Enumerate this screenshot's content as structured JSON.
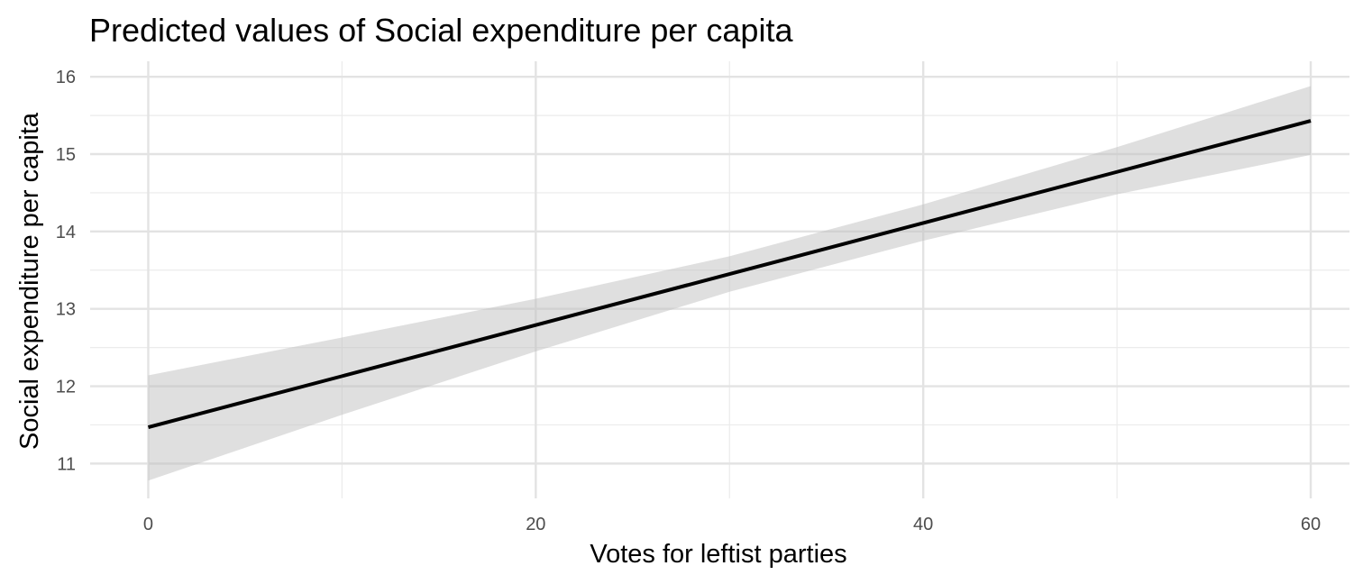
{
  "chart_data": {
    "type": "line",
    "title": "Predicted values of Social expenditure per capita",
    "xlabel": "Votes for leftist parties",
    "ylabel": "Social expenditure per capita",
    "xlim": [
      -3,
      62
    ],
    "ylim": [
      10.55,
      16.2
    ],
    "x_ticks": [
      0,
      20,
      40,
      60
    ],
    "x_minor_ticks": [
      10,
      30,
      50
    ],
    "y_ticks": [
      11,
      12,
      13,
      14,
      15,
      16
    ],
    "y_minor_ticks": [
      11.5,
      12.5,
      13.5,
      14.5,
      15.5
    ],
    "grid": true,
    "legend": "none",
    "series": [
      {
        "x": [
          0,
          10,
          20,
          30,
          40,
          50,
          60
        ],
        "y": [
          11.47,
          12.13,
          12.79,
          13.45,
          14.11,
          14.77,
          15.43
        ],
        "ci_lower": [
          10.78,
          11.63,
          12.45,
          13.22,
          13.88,
          14.48,
          14.99
        ],
        "ci_upper": [
          12.14,
          12.63,
          13.13,
          13.68,
          14.35,
          15.09,
          15.88
        ],
        "color": "#000000",
        "band_color": "#bfbfbf"
      }
    ]
  }
}
